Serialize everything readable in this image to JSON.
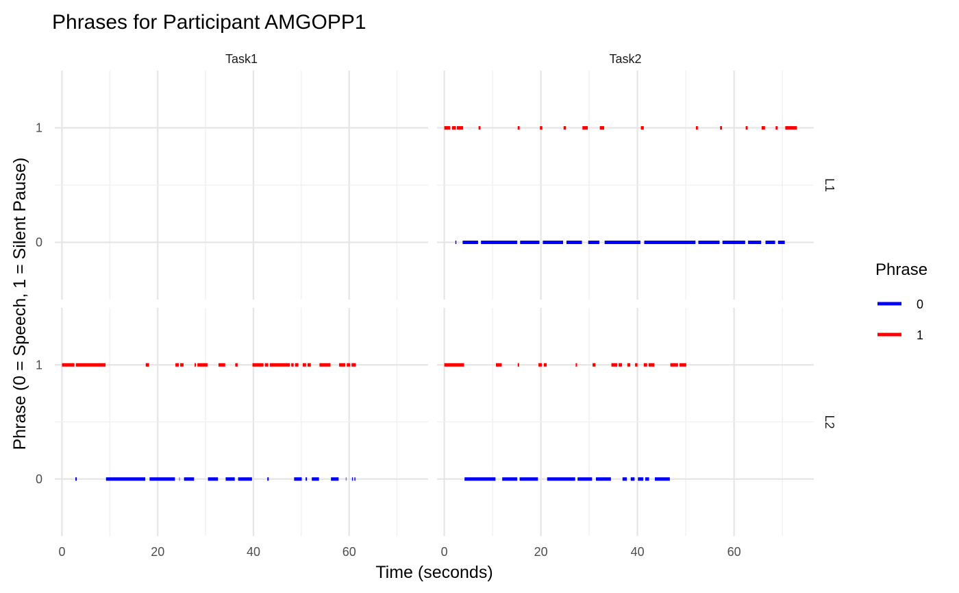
{
  "chart_data": {
    "type": "line",
    "title": "Phrases for Participant AMGOPP1",
    "xlabel": "Time (seconds)",
    "ylabel": "Phrase (0 = Speech, 1 = Silent Pause)",
    "facet_cols": [
      "Task1",
      "Task2"
    ],
    "facet_rows": [
      "L1",
      "L2"
    ],
    "xlim": [
      -1.5,
      76.5
    ],
    "ylim": [
      -0.5,
      1.5
    ],
    "x_ticks": [
      0,
      20,
      40,
      60
    ],
    "y_ticks": [
      0,
      1
    ],
    "grid": true,
    "legend": {
      "title": "Phrase",
      "position": "right",
      "entries": [
        {
          "label": "0",
          "color": "#0000ff"
        },
        {
          "label": "1",
          "color": "#ff0000"
        }
      ]
    },
    "panels": [
      {
        "col": "Task1",
        "row": "L1",
        "segments": {
          "0": [],
          "1": []
        }
      },
      {
        "col": "Task2",
        "row": "L1",
        "segments": {
          "1": [
            [
              0,
              1.2
            ],
            [
              1.6,
              2.4
            ],
            [
              2.6,
              3.9
            ],
            [
              7.1,
              7.5
            ],
            [
              15.2,
              15.6
            ],
            [
              19.8,
              20.3
            ],
            [
              24.7,
              25.2
            ],
            [
              28.6,
              29.7
            ],
            [
              32.2,
              33.1
            ],
            [
              40.7,
              41.3
            ],
            [
              52.1,
              52.5
            ],
            [
              57.1,
              57.5
            ],
            [
              62.4,
              62.8
            ],
            [
              65.7,
              66.4
            ],
            [
              68.6,
              69.0
            ],
            [
              70.6,
              73.0
            ]
          ],
          "0": [
            [
              2.3,
              2.5
            ],
            [
              3.8,
              7.0
            ],
            [
              7.6,
              15.1
            ],
            [
              15.7,
              19.7
            ],
            [
              20.4,
              24.6
            ],
            [
              25.3,
              28.5
            ],
            [
              29.8,
              32.1
            ],
            [
              33.2,
              40.6
            ],
            [
              41.4,
              52.0
            ],
            [
              52.6,
              57.0
            ],
            [
              57.6,
              62.3
            ],
            [
              62.9,
              65.6
            ],
            [
              66.5,
              68.5
            ],
            [
              69.1,
              70.5
            ]
          ]
        }
      },
      {
        "col": "Task1",
        "row": "L2",
        "segments": {
          "1": [
            [
              0,
              2.6
            ],
            [
              2.9,
              9.1
            ],
            [
              17.5,
              18.2
            ],
            [
              23.7,
              24.4
            ],
            [
              24.7,
              25.4
            ],
            [
              27.7,
              28.0
            ],
            [
              28.3,
              30.4
            ],
            [
              32.7,
              34.1
            ],
            [
              36.2,
              36.7
            ],
            [
              39.8,
              42.1
            ],
            [
              42.4,
              43.1
            ],
            [
              43.4,
              47.6
            ],
            [
              47.9,
              48.4
            ],
            [
              48.7,
              49.4
            ],
            [
              50.3,
              51.0
            ],
            [
              51.3,
              52.0
            ],
            [
              53.8,
              56.1
            ],
            [
              57.9,
              59.2
            ],
            [
              59.5,
              60.2
            ],
            [
              60.5,
              61.4
            ]
          ],
          "0": [
            [
              2.8,
              3.1
            ],
            [
              9.2,
              17.4
            ],
            [
              18.3,
              23.6
            ],
            [
              24.5,
              24.6
            ],
            [
              25.5,
              27.6
            ],
            [
              30.5,
              32.6
            ],
            [
              34.2,
              36.1
            ],
            [
              36.8,
              39.7
            ],
            [
              42.9,
              43.2
            ],
            [
              48.5,
              50.1
            ],
            [
              50.9,
              51.2
            ],
            [
              52.2,
              53.7
            ],
            [
              56.2,
              57.8
            ],
            [
              59.3,
              59.4
            ],
            [
              60.6,
              60.8
            ],
            [
              61.1,
              61.3
            ]
          ]
        }
      },
      {
        "col": "Task2",
        "row": "L2",
        "segments": {
          "1": [
            [
              0,
              4.1
            ],
            [
              10.7,
              11.9
            ],
            [
              15.2,
              15.5
            ],
            [
              19.5,
              20.2
            ],
            [
              20.6,
              21.2
            ],
            [
              27.2,
              27.5
            ],
            [
              30.7,
              31.3
            ],
            [
              34.6,
              35.8
            ],
            [
              36.1,
              36.8
            ],
            [
              37.9,
              38.5
            ],
            [
              39.5,
              40.0
            ],
            [
              41.3,
              42.0
            ],
            [
              42.3,
              43.5
            ],
            [
              46.8,
              48.4
            ],
            [
              48.7,
              50.1
            ]
          ],
          "0": [
            [
              4.2,
              10.6
            ],
            [
              12.0,
              15.1
            ],
            [
              15.6,
              19.4
            ],
            [
              21.3,
              27.1
            ],
            [
              27.6,
              30.6
            ],
            [
              31.4,
              34.5
            ],
            [
              36.9,
              37.8
            ],
            [
              38.6,
              39.4
            ],
            [
              40.1,
              41.2
            ],
            [
              41.6,
              42.4
            ],
            [
              43.6,
              46.7
            ]
          ]
        }
      }
    ]
  }
}
